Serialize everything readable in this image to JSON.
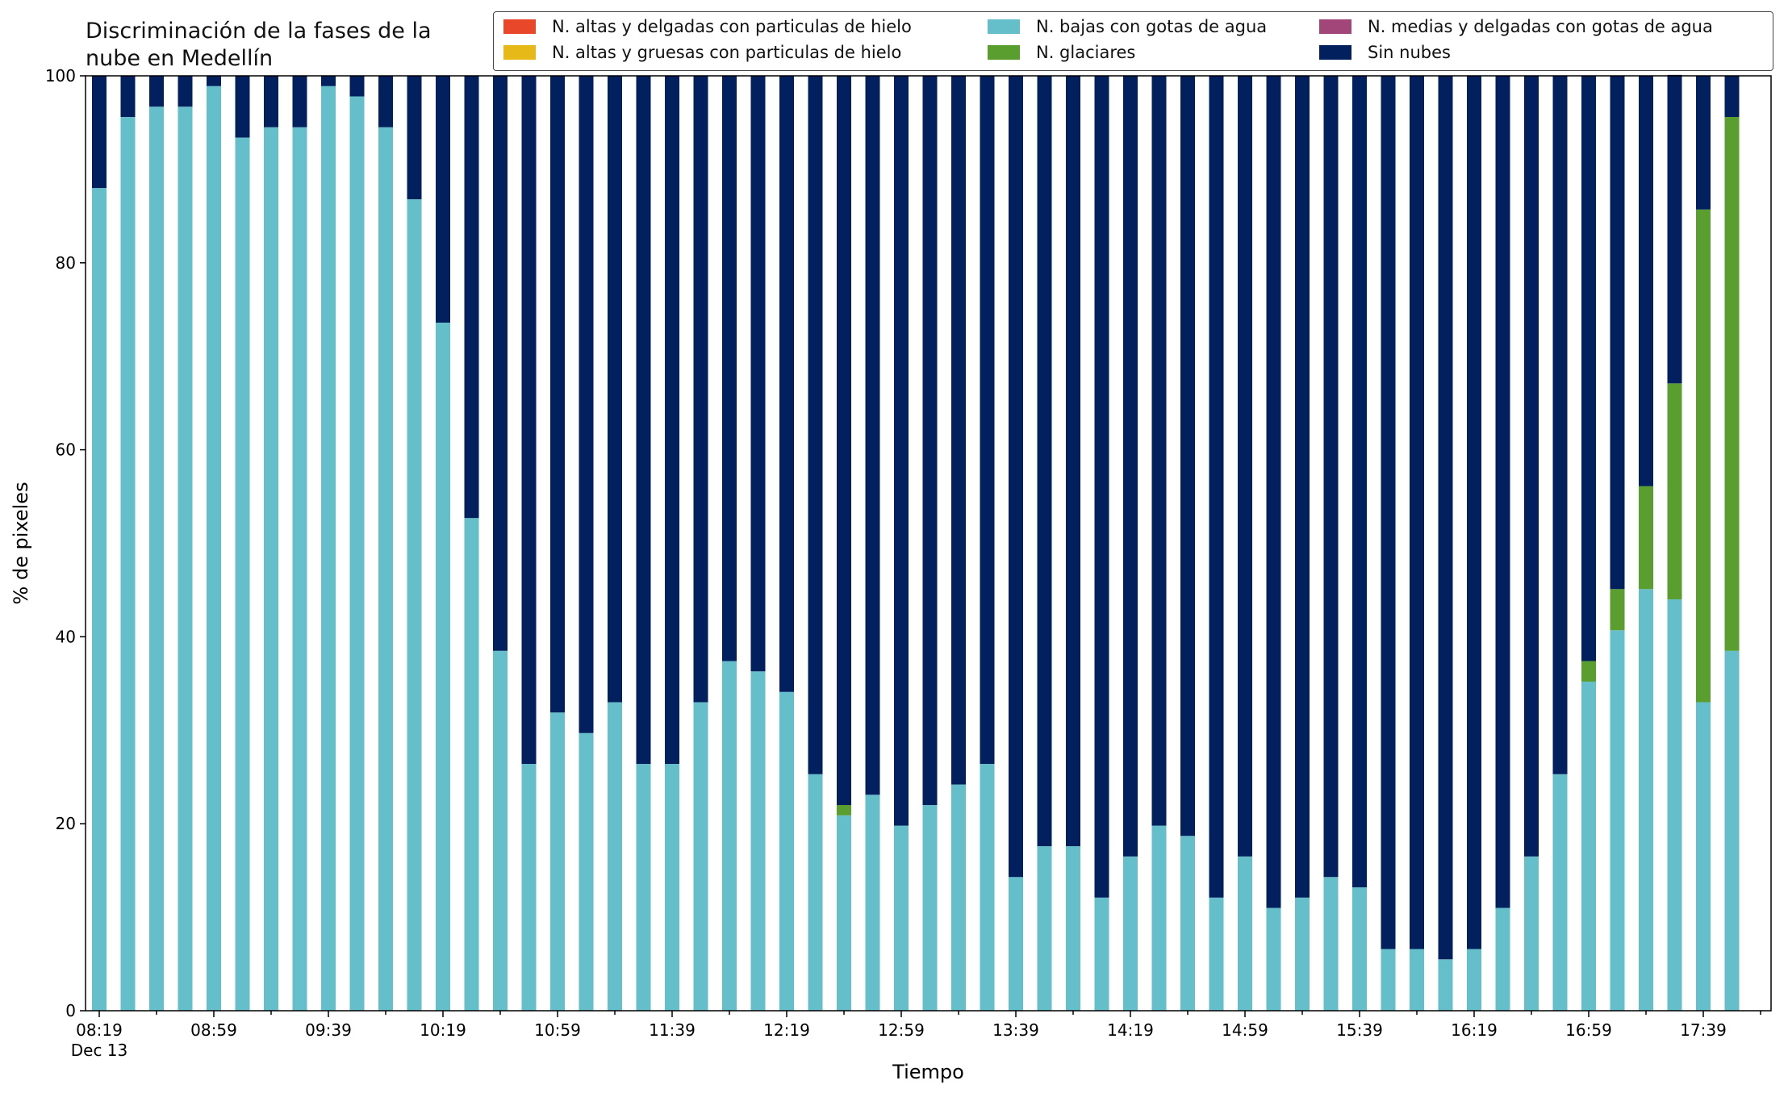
{
  "chart_data": {
    "type": "bar",
    "stacked": true,
    "title": "Discriminación de la fases de la\nnube en Medellín",
    "xlabel": "Tiempo",
    "ylabel": "% de pixeles",
    "ylim": [
      0,
      100
    ],
    "yticks": [
      0,
      20,
      40,
      60,
      80,
      100
    ],
    "xtick_labels": [
      "08:19",
      "08:59",
      "09:39",
      "10:19",
      "10:59",
      "11:39",
      "12:19",
      "12:59",
      "13:39",
      "14:19",
      "14:59",
      "15:39",
      "16:19",
      "16:59",
      "17:39"
    ],
    "xtick_sublabel": "Dec 13",
    "grid": false,
    "legend_position": "top-right",
    "series": [
      {
        "name": "N. altas y delgadas con particulas de hielo",
        "color": "#e8472a",
        "values": [
          0,
          0,
          0,
          0,
          0,
          0,
          0,
          0,
          0,
          0,
          0,
          0,
          0,
          0,
          0,
          0,
          0,
          0,
          0,
          0,
          0,
          0,
          0,
          0,
          0,
          0,
          0,
          0,
          0,
          0,
          0,
          0,
          0,
          0,
          0,
          0,
          0,
          0,
          0,
          0,
          0,
          0,
          0,
          0,
          0,
          0,
          0,
          0,
          0,
          0,
          0,
          0,
          0,
          0,
          0,
          0,
          0,
          0
        ]
      },
      {
        "name": "N. altas y gruesas con particulas de hielo",
        "color": "#e6b918",
        "values": [
          0,
          0,
          0,
          0,
          0,
          0,
          0,
          0,
          0,
          0,
          0,
          0,
          0,
          0,
          0,
          0,
          0,
          0,
          0,
          0,
          0,
          0,
          0,
          0,
          0,
          0,
          0,
          0,
          0,
          0,
          0,
          0,
          0,
          0,
          0,
          0,
          0,
          0,
          0,
          0,
          0,
          0,
          0,
          0,
          0,
          0,
          0,
          0,
          0,
          0,
          0,
          0,
          0,
          0,
          0,
          0,
          0,
          0
        ]
      },
      {
        "name": "N. bajas con gotas de agua",
        "color": "#65bfca",
        "values": [
          88.0,
          95.6,
          96.7,
          96.7,
          98.9,
          93.4,
          94.5,
          94.5,
          98.9,
          97.8,
          94.5,
          86.8,
          73.6,
          52.7,
          38.5,
          26.4,
          31.9,
          29.7,
          33.0,
          26.4,
          26.4,
          33.0,
          37.4,
          36.3,
          34.1,
          25.3,
          20.9,
          23.1,
          19.8,
          22.0,
          24.2,
          26.4,
          14.3,
          17.6,
          17.6,
          12.1,
          16.5,
          19.8,
          18.7,
          12.1,
          16.5,
          11.0,
          12.1,
          14.3,
          13.2,
          6.6,
          6.6,
          5.5,
          6.6,
          11.0,
          16.5,
          25.3,
          35.2,
          40.7,
          45.1,
          44.0,
          33.0,
          38.5
        ]
      },
      {
        "name": "N. glaciares",
        "color": "#5a9e2f",
        "values": [
          0,
          0,
          0,
          0,
          0,
          0,
          0,
          0,
          0,
          0,
          0,
          0,
          0,
          0,
          0,
          0,
          0,
          0,
          0,
          0,
          0,
          0,
          0,
          0,
          0,
          0,
          1.1,
          0,
          0,
          0,
          0,
          0,
          0,
          0,
          0,
          0,
          0,
          0,
          0,
          0,
          0,
          0,
          0,
          0,
          0,
          0,
          0,
          0,
          0,
          0,
          0,
          0,
          2.2,
          4.4,
          11.0,
          23.1,
          52.7,
          57.1
        ]
      },
      {
        "name": "N. medias y delgadas con gotas de agua",
        "color": "#a24579",
        "values": [
          0,
          0,
          0,
          0,
          0,
          0,
          0,
          0,
          0,
          0,
          0,
          0,
          0,
          0,
          0,
          0,
          0,
          0,
          0,
          0,
          0,
          0,
          0,
          0,
          0,
          0,
          0,
          0,
          0,
          0,
          0,
          0,
          0,
          0,
          0,
          0,
          0,
          0,
          0,
          0,
          0,
          0,
          0,
          0,
          0,
          0,
          0,
          0,
          0,
          0,
          0,
          0,
          0,
          0,
          0,
          0,
          0,
          0
        ]
      },
      {
        "name": "Sin nubes",
        "color": "#02205e",
        "values": [
          12.0,
          4.4,
          3.3,
          3.3,
          1.1,
          6.6,
          5.5,
          5.5,
          1.1,
          2.2,
          5.5,
          13.2,
          26.4,
          47.3,
          61.5,
          73.6,
          68.1,
          70.3,
          67.0,
          73.6,
          73.6,
          67.0,
          62.6,
          63.7,
          65.9,
          74.7,
          78.0,
          76.9,
          80.2,
          78.0,
          75.8,
          73.6,
          85.7,
          82.4,
          82.4,
          87.9,
          83.5,
          80.2,
          81.3,
          87.9,
          83.5,
          89.0,
          87.9,
          85.7,
          86.8,
          93.4,
          93.4,
          94.5,
          93.4,
          89.0,
          83.5,
          74.7,
          62.6,
          54.9,
          43.9,
          33.0,
          14.3,
          4.4
        ]
      }
    ]
  }
}
